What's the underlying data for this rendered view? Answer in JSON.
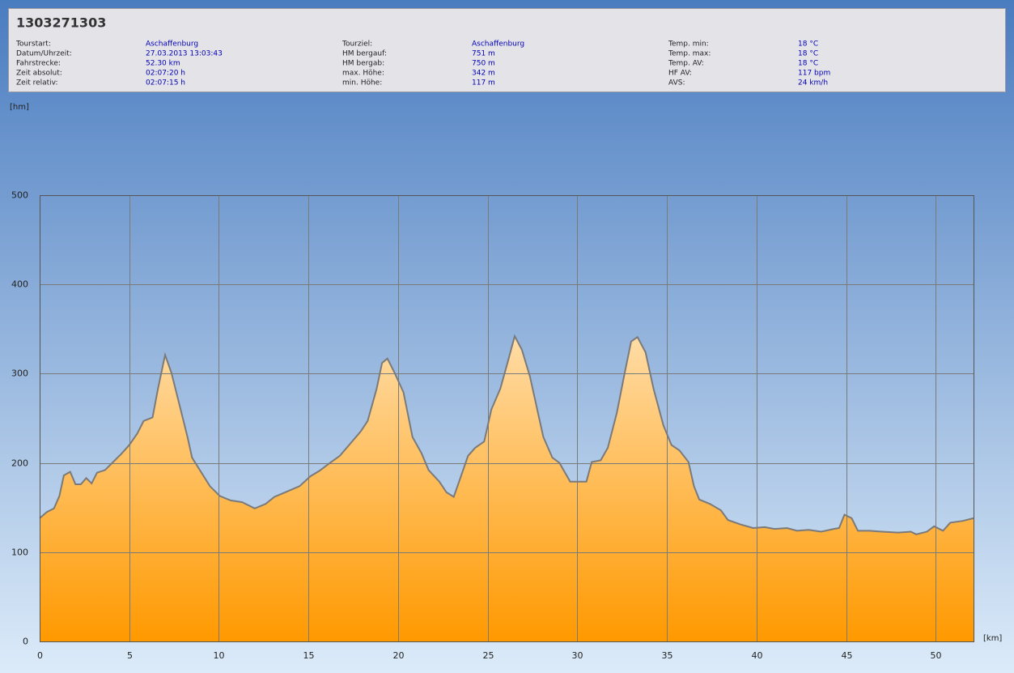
{
  "header": {
    "title": "1303271303",
    "columns": [
      [
        [
          "Tourstart:",
          "Aschaffenburg"
        ],
        [
          "Datum/Uhrzeit:",
          "27.03.2013 13:03:43"
        ],
        [
          "Fahrstrecke:",
          "52.30 km"
        ],
        [
          "Zeit absolut:",
          "02:07:20 h"
        ],
        [
          "Zeit relativ:",
          "02:07:15 h"
        ]
      ],
      [
        [
          "Tourziel:",
          "Aschaffenburg"
        ],
        [
          "HM bergauf:",
          "751 m"
        ],
        [
          "HM bergab:",
          "750 m"
        ],
        [
          "max. Höhe:",
          "342 m"
        ],
        [
          "min. Höhe:",
          "117 m"
        ]
      ],
      [
        [
          "Temp. min:",
          "18 °C"
        ],
        [
          "Temp. max:",
          "18 °C"
        ],
        [
          "Temp. AV:",
          "18 °C"
        ],
        [
          "HF AV:",
          "117 bpm"
        ],
        [
          "AVS:",
          "24 km/h"
        ]
      ]
    ]
  },
  "chart_data": {
    "type": "area",
    "x_label": "[km]",
    "y_label": "[hm]",
    "fill_top": "#ffdca6",
    "fill_bottom": "#ff9900",
    "line_color": "#7a7a7a",
    "grid": true,
    "x": [
      0,
      0.4,
      0.8,
      1.1,
      1.35,
      1.7,
      2.0,
      2.3,
      2.6,
      2.9,
      3.2,
      3.65,
      4.1,
      4.55,
      5.0,
      5.45,
      5.8,
      6.3,
      6.6,
      7.0,
      7.35,
      7.8,
      8.25,
      8.5,
      9.0,
      9.5,
      10.05,
      10.65,
      11.3,
      12.0,
      12.6,
      13.1,
      13.8,
      14.5,
      15.1,
      15.6,
      16.2,
      16.75,
      17.3,
      17.9,
      18.3,
      18.8,
      19.1,
      19.4,
      19.8,
      20.3,
      20.8,
      21.3,
      21.7,
      22.3,
      22.7,
      23.1,
      23.4,
      23.9,
      24.3,
      24.8,
      25.2,
      25.7,
      26.1,
      26.5,
      26.9,
      27.35,
      27.8,
      28.1,
      28.6,
      29.0,
      29.6,
      30.1,
      30.5,
      30.8,
      31.3,
      31.7,
      32.2,
      32.6,
      33.0,
      33.35,
      33.8,
      34.25,
      34.8,
      35.25,
      35.7,
      36.2,
      36.5,
      36.8,
      37.4,
      38.0,
      38.4,
      39.1,
      39.8,
      40.45,
      41.0,
      41.7,
      42.25,
      42.9,
      43.6,
      44.3,
      44.6,
      44.9,
      45.3,
      45.65,
      46.3,
      47.0,
      47.9,
      48.6,
      48.9,
      49.5,
      49.9,
      50.4,
      50.8,
      51.5,
      52.1
    ],
    "values": [
      138,
      145,
      149,
      163,
      186,
      190,
      176,
      176,
      183,
      177,
      189,
      192,
      201,
      210,
      220,
      233,
      247,
      251,
      283,
      321,
      301,
      265,
      229,
      206,
      190,
      174,
      163,
      158,
      156,
      149,
      154,
      162,
      168,
      174,
      185,
      191,
      200,
      208,
      221,
      235,
      247,
      283,
      312,
      317,
      301,
      279,
      229,
      211,
      192,
      179,
      167,
      162,
      179,
      208,
      217,
      224,
      260,
      283,
      312,
      342,
      327,
      297,
      256,
      229,
      206,
      200,
      179,
      179,
      179,
      201,
      203,
      217,
      256,
      297,
      336,
      341,
      324,
      283,
      242,
      220,
      214,
      201,
      174,
      159,
      154,
      147,
      136,
      131,
      127,
      128,
      126,
      127,
      124,
      125,
      123,
      126,
      127,
      142,
      138,
      124,
      124,
      123,
      122,
      123,
      120,
      123,
      129,
      124,
      133,
      135,
      138
    ],
    "xlim": [
      0,
      52.1
    ],
    "ylim": [
      0,
      500
    ],
    "xticks": [
      0,
      5,
      10,
      15,
      20,
      25,
      30,
      35,
      40,
      45,
      50
    ],
    "yticks": [
      0,
      100,
      200,
      300,
      400,
      500
    ]
  }
}
